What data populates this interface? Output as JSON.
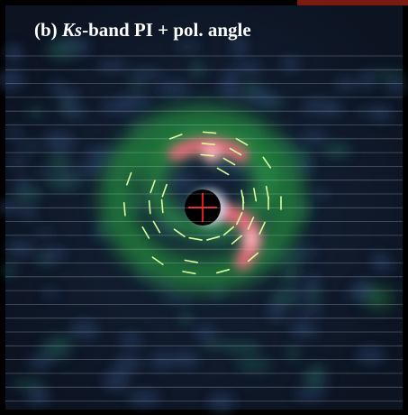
{
  "panel": {
    "label": "(b)",
    "title_italic": "Ks",
    "title_rest": "-band PI + pol. angle"
  }
}
